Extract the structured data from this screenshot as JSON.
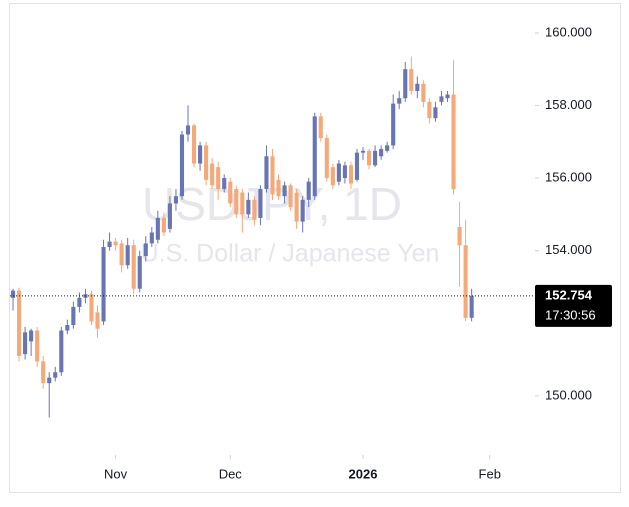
{
  "chart_data": {
    "type": "candlestick",
    "title": "USDJPY, 1D",
    "subtitle": "U.S. Dollar / Japanese Yen",
    "up_color": "#6875b5",
    "down_color": "#f5a878",
    "open": [
      152.7,
      152.9,
      151.15,
      151.5,
      151.8,
      150.95,
      150.35,
      150.5,
      150.65,
      151.8,
      151.95,
      152.45,
      152.7,
      152.8,
      152.3,
      152.05,
      154.1,
      154.25,
      154.2,
      153.6,
      154.15,
      152.95,
      153.85,
      154.2,
      154.3,
      154.9,
      154.6,
      155.3,
      155.5,
      157.2,
      157.45,
      156.4,
      156.9,
      156.4,
      156.3,
      155.7,
      155.9,
      155.7,
      155.6,
      155.0,
      155.4,
      154.9,
      155.7,
      156.6,
      155.95,
      155.5,
      155.8,
      155.6,
      154.8,
      155.4,
      155.5,
      157.7,
      157.1,
      156.3,
      155.9,
      156.0,
      156.35,
      155.95,
      156.7,
      156.75,
      156.35,
      156.6,
      156.75,
      156.9,
      158.05,
      158.2,
      159.0,
      158.4,
      158.6,
      158.1,
      157.65,
      158.1,
      158.2,
      158.3,
      154.65,
      154.15,
      152.15
    ],
    "high": [
      152.95,
      152.98,
      151.9,
      151.85,
      151.9,
      151.1,
      150.65,
      150.8,
      151.9,
      152.1,
      152.6,
      152.85,
      152.95,
      152.9,
      152.5,
      154.3,
      154.5,
      154.35,
      154.3,
      154.35,
      154.3,
      154.0,
      154.4,
      154.65,
      155.1,
      155.05,
      155.5,
      155.7,
      157.3,
      158.0,
      157.5,
      157.0,
      157.0,
      156.55,
      156.45,
      156.1,
      156.0,
      155.8,
      155.7,
      155.6,
      155.5,
      155.8,
      156.9,
      156.8,
      156.1,
      155.9,
      155.85,
      155.7,
      155.5,
      156.0,
      157.8,
      157.8,
      157.2,
      156.4,
      156.5,
      156.45,
      156.45,
      156.8,
      156.85,
      156.8,
      156.9,
      156.9,
      157.0,
      158.3,
      158.4,
      159.2,
      159.35,
      158.8,
      158.7,
      158.2,
      158.1,
      158.4,
      158.4,
      159.25,
      155.35,
      154.85,
      152.95
    ],
    "low": [
      152.35,
      150.95,
      151.0,
      151.1,
      150.8,
      150.2,
      149.4,
      150.4,
      150.55,
      151.7,
      151.85,
      152.3,
      152.55,
      151.95,
      151.6,
      151.95,
      154.0,
      154.0,
      153.4,
      153.5,
      152.8,
      152.85,
      153.7,
      154.1,
      154.2,
      154.4,
      154.5,
      155.1,
      155.4,
      157.0,
      156.3,
      156.2,
      155.8,
      155.7,
      155.4,
      155.6,
      155.2,
      154.9,
      154.5,
      154.9,
      154.7,
      154.7,
      155.6,
      155.4,
      155.4,
      155.3,
      155.1,
      154.6,
      154.5,
      155.2,
      155.4,
      157.0,
      155.9,
      155.7,
      155.8,
      155.85,
      155.7,
      155.9,
      156.5,
      156.25,
      156.3,
      156.5,
      156.7,
      156.8,
      157.9,
      158.1,
      158.3,
      158.2,
      157.95,
      157.5,
      157.55,
      158.0,
      158.1,
      155.55,
      153.0,
      152.05,
      152.05
    ],
    "close": [
      152.9,
      151.1,
      151.75,
      151.8,
      150.95,
      150.35,
      150.5,
      150.65,
      151.8,
      151.95,
      152.45,
      152.7,
      152.8,
      152.05,
      151.85,
      154.1,
      154.25,
      154.15,
      153.6,
      154.15,
      152.95,
      153.85,
      154.2,
      154.5,
      154.9,
      154.5,
      155.3,
      155.5,
      157.2,
      157.45,
      156.4,
      156.9,
      155.95,
      155.8,
      155.7,
      156.0,
      155.3,
      155.0,
      155.0,
      155.4,
      154.85,
      155.7,
      156.6,
      155.55,
      155.5,
      155.8,
      155.2,
      154.8,
      155.4,
      155.9,
      157.7,
      157.1,
      156.0,
      155.8,
      156.4,
      156.35,
      155.85,
      156.7,
      156.75,
      156.35,
      156.75,
      156.8,
      156.9,
      158.05,
      158.2,
      159.0,
      158.4,
      158.6,
      158.1,
      157.65,
      157.95,
      158.25,
      158.3,
      155.7,
      154.15,
      152.15,
      152.754
    ],
    "xlim": [
      -0.5,
      86.5
    ],
    "xticks": [
      {
        "value": 17,
        "label": "Nov"
      },
      {
        "value": 36,
        "label": "Dec"
      },
      {
        "value": 58,
        "label": "2026"
      },
      {
        "value": 79,
        "label": "Feb"
      }
    ],
    "ylim": [
      148.37,
      160.63
    ],
    "yticks": [
      {
        "value": 150,
        "label": "150.000"
      },
      {
        "value": 152,
        "label": "152.000"
      },
      {
        "value": 154,
        "label": "154.000"
      },
      {
        "value": 156,
        "label": "156.000"
      },
      {
        "value": 158,
        "label": "158.000"
      },
      {
        "value": 160,
        "label": "160.000"
      }
    ],
    "countdown": "17:30:56"
  }
}
